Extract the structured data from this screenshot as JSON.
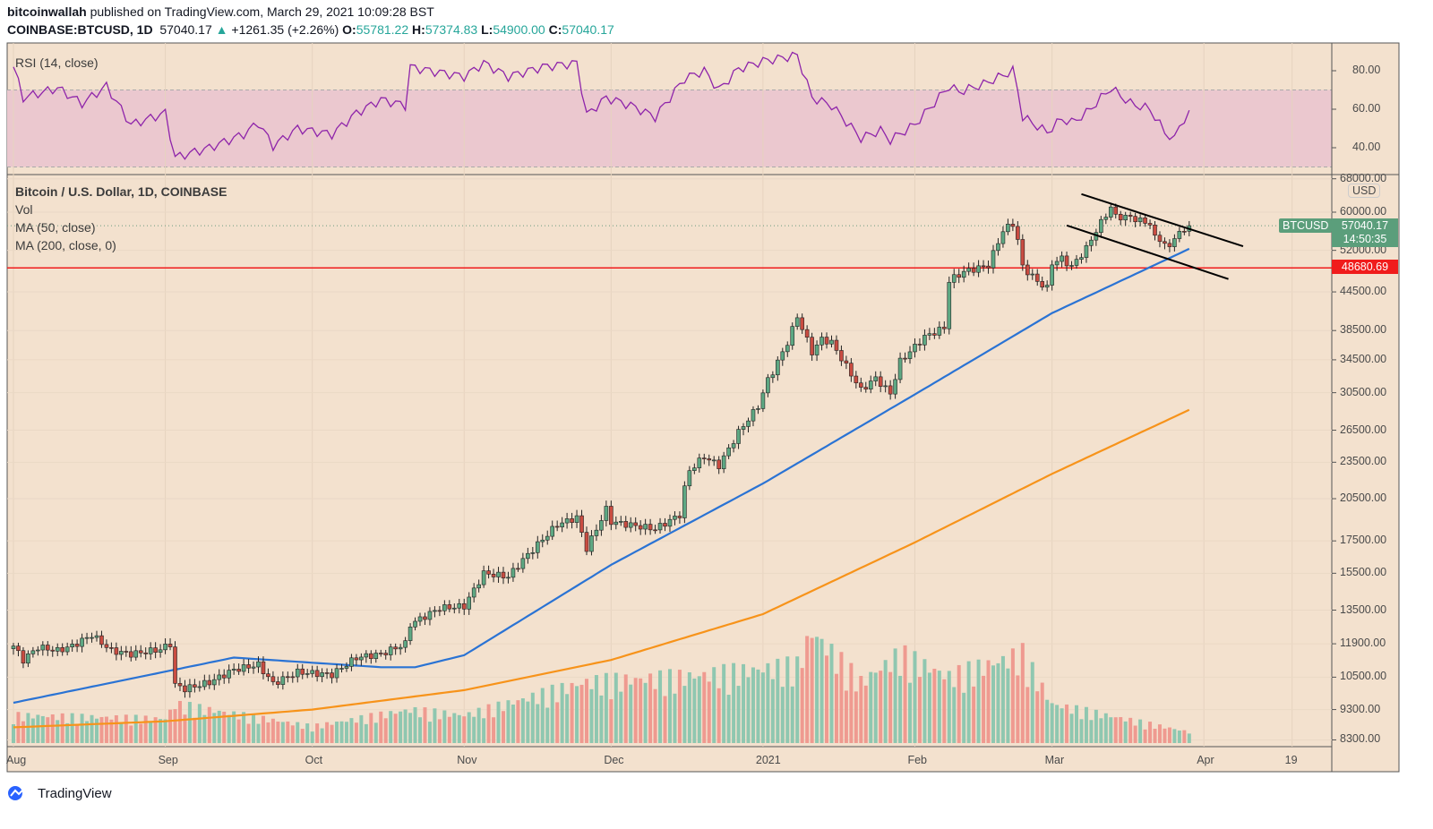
{
  "header": {
    "author": "bitcoinwallah",
    "published": "published on TradingView.com, March 29, 2021 10:09:28 BST",
    "symbol": "COINBASE:BTCUSD, 1D",
    "last": "57040.17",
    "change": "+1261.35 (+2.26%)",
    "o_label": "O:",
    "o": "55781.22",
    "h_label": "H:",
    "h": "57374.83",
    "l_label": "L:",
    "l": "54900.00",
    "c_label": "C:",
    "c": "57040.17"
  },
  "legend": {
    "rsi": "RSI (14, close)",
    "title": "Bitcoin / U.S. Dollar, 1D, COINBASE",
    "vol": "Vol",
    "ma50": "MA (50, close)",
    "ma200": "MA (200, close, 0)"
  },
  "axis": {
    "currency": "USD",
    "price_ticks": [
      "68000.00",
      "60000.00",
      "52000.00",
      "44500.00",
      "38500.00",
      "34500.00",
      "30500.00",
      "26500.00",
      "23500.00",
      "20500.00",
      "17500.00",
      "15500.00",
      "13500.00",
      "11900.00",
      "10500.00",
      "9300.00",
      "8300.00"
    ],
    "rsi_ticks": [
      "80.00",
      "60.00",
      "40.00"
    ],
    "x_ticks": [
      {
        "label": "Aug",
        "date": "2020-08-01"
      },
      {
        "label": "Sep",
        "date": "2020-09-01"
      },
      {
        "label": "Oct",
        "date": "2020-10-01"
      },
      {
        "label": "Nov",
        "date": "2020-11-01"
      },
      {
        "label": "Dec",
        "date": "2020-12-01"
      },
      {
        "label": "2021",
        "date": "2021-01-01"
      },
      {
        "label": "Feb",
        "date": "2021-02-01"
      },
      {
        "label": "Mar",
        "date": "2021-03-01"
      },
      {
        "label": "Apr",
        "date": "2021-04-01"
      },
      {
        "label": "19",
        "date": "2021-04-19"
      }
    ],
    "last_tag_label": "BTCUSD",
    "last_price": "57040.17",
    "countdown": "14:50:35",
    "level_price": "48680.69"
  },
  "colors": {
    "background": "#f3e1ce",
    "up": "#5ea883",
    "down": "#c94c41",
    "ma50": "#2a73d4",
    "ma200": "#f7931a",
    "rsi": "#8e24aa",
    "level": "#f01c1c",
    "last_tag": "#5b9e7b"
  },
  "footer": {
    "brand": "TradingView"
  },
  "chart_data": {
    "type": "candlestick",
    "scale": "log",
    "grid": true,
    "closes": [
      [
        "2020-08-01",
        11800
      ],
      [
        "2020-08-03",
        11200
      ],
      [
        "2020-08-06",
        11750
      ],
      [
        "2020-08-10",
        11600
      ],
      [
        "2020-08-13",
        11800
      ],
      [
        "2020-08-17",
        12300
      ],
      [
        "2020-08-21",
        11600
      ],
      [
        "2020-08-25",
        11450
      ],
      [
        "2020-08-31",
        11650
      ],
      [
        "2020-09-02",
        11900
      ],
      [
        "2020-09-03",
        10200
      ],
      [
        "2020-09-05",
        10050
      ],
      [
        "2020-09-10",
        10300
      ],
      [
        "2020-09-15",
        10800
      ],
      [
        "2020-09-20",
        11000
      ],
      [
        "2020-09-23",
        10250
      ],
      [
        "2020-09-28",
        10700
      ],
      [
        "2020-10-05",
        10600
      ],
      [
        "2020-10-10",
        11300
      ],
      [
        "2020-10-15",
        11450
      ],
      [
        "2020-10-20",
        11900
      ],
      [
        "2020-10-21",
        12800
      ],
      [
        "2020-10-27",
        13600
      ],
      [
        "2020-11-01",
        13700
      ],
      [
        "2020-11-05",
        15500
      ],
      [
        "2020-11-10",
        15300
      ],
      [
        "2020-11-13",
        16300
      ],
      [
        "2020-11-17",
        17600
      ],
      [
        "2020-11-20",
        18600
      ],
      [
        "2020-11-24",
        19100
      ],
      [
        "2020-11-26",
        17000
      ],
      [
        "2020-11-30",
        19700
      ],
      [
        "2020-12-01",
        18800
      ],
      [
        "2020-12-10",
        18300
      ],
      [
        "2020-12-15",
        19300
      ],
      [
        "2020-12-16",
        21300
      ],
      [
        "2020-12-17",
        22800
      ],
      [
        "2020-12-20",
        24000
      ],
      [
        "2020-12-23",
        23200
      ],
      [
        "2020-12-27",
        26300
      ],
      [
        "2020-12-31",
        29000
      ],
      [
        "2021-01-02",
        32000
      ],
      [
        "2021-01-03",
        33000
      ],
      [
        "2021-01-06",
        36800
      ],
      [
        "2021-01-08",
        40600
      ],
      [
        "2021-01-11",
        35500
      ],
      [
        "2021-01-13",
        37300
      ],
      [
        "2021-01-15",
        36800
      ],
      [
        "2021-01-21",
        30800
      ],
      [
        "2021-01-24",
        32200
      ],
      [
        "2021-01-27",
        30400
      ],
      [
        "2021-01-29",
        34300
      ],
      [
        "2021-02-03",
        37600
      ],
      [
        "2021-02-07",
        38900
      ],
      [
        "2021-02-08",
        46400
      ],
      [
        "2021-02-11",
        48000
      ],
      [
        "2021-02-14",
        48700
      ],
      [
        "2021-02-16",
        49200
      ],
      [
        "2021-02-19",
        56000
      ],
      [
        "2021-02-21",
        57500
      ],
      [
        "2021-02-22",
        54000
      ],
      [
        "2021-02-23",
        48900
      ],
      [
        "2021-02-26",
        46300
      ],
      [
        "2021-02-28",
        45100
      ],
      [
        "2021-03-01",
        49600
      ],
      [
        "2021-03-03",
        50400
      ],
      [
        "2021-03-05",
        48900
      ],
      [
        "2021-03-08",
        52400
      ],
      [
        "2021-03-10",
        56000
      ],
      [
        "2021-03-13",
        61200
      ],
      [
        "2021-03-14",
        59000
      ],
      [
        "2021-03-17",
        58900
      ],
      [
        "2021-03-19",
        58100
      ],
      [
        "2021-03-21",
        57500
      ],
      [
        "2021-03-22",
        54400
      ],
      [
        "2021-03-23",
        54300
      ],
      [
        "2021-03-25",
        52300
      ],
      [
        "2021-03-26",
        55000
      ],
      [
        "2021-03-28",
        55800
      ],
      [
        "2021-03-29",
        57040.17
      ]
    ],
    "ma50": [
      [
        "2020-08-01",
        9540
      ],
      [
        "2020-09-15",
        11300
      ],
      [
        "2020-10-15",
        10900
      ],
      [
        "2020-10-22",
        10900
      ],
      [
        "2020-11-01",
        11400
      ],
      [
        "2020-12-01",
        16000
      ],
      [
        "2021-01-01",
        21700
      ],
      [
        "2021-02-01",
        30300
      ],
      [
        "2021-03-01",
        41100
      ],
      [
        "2021-03-29",
        52300
      ]
    ],
    "ma200": [
      [
        "2020-08-01",
        8700
      ],
      [
        "2020-09-01",
        8900
      ],
      [
        "2020-10-01",
        9300
      ],
      [
        "2020-11-01",
        10000
      ],
      [
        "2020-12-01",
        11200
      ],
      [
        "2021-01-01",
        13300
      ],
      [
        "2021-02-01",
        17400
      ],
      [
        "2021-03-01",
        22500
      ],
      [
        "2021-03-29",
        28600
      ]
    ],
    "rsi": [
      [
        "2020-08-01",
        82
      ],
      [
        "2020-08-03",
        66
      ],
      [
        "2020-08-10",
        71
      ],
      [
        "2020-08-15",
        63
      ],
      [
        "2020-08-20",
        72
      ],
      [
        "2020-08-25",
        52
      ],
      [
        "2020-09-01",
        58
      ],
      [
        "2020-09-03",
        35
      ],
      [
        "2020-09-10",
        40
      ],
      [
        "2020-09-17",
        47
      ],
      [
        "2020-09-20",
        53
      ],
      [
        "2020-09-23",
        41
      ],
      [
        "2020-09-28",
        50
      ],
      [
        "2020-10-05",
        47
      ],
      [
        "2020-10-10",
        58
      ],
      [
        "2020-10-15",
        65
      ],
      [
        "2020-10-20",
        62
      ],
      [
        "2020-10-21",
        82
      ],
      [
        "2020-10-25",
        80
      ],
      [
        "2020-11-01",
        77
      ],
      [
        "2020-11-05",
        84
      ],
      [
        "2020-11-10",
        77
      ],
      [
        "2020-11-17",
        82
      ],
      [
        "2020-11-24",
        84
      ],
      [
        "2020-11-26",
        57
      ],
      [
        "2020-11-30",
        66
      ],
      [
        "2020-12-05",
        62
      ],
      [
        "2020-12-10",
        56
      ],
      [
        "2020-12-16",
        76
      ],
      [
        "2020-12-20",
        80
      ],
      [
        "2020-12-23",
        70
      ],
      [
        "2020-12-27",
        81
      ],
      [
        "2021-01-01",
        85
      ],
      [
        "2021-01-08",
        88
      ],
      [
        "2021-01-11",
        66
      ],
      [
        "2021-01-15",
        62
      ],
      [
        "2021-01-21",
        45
      ],
      [
        "2021-01-25",
        49
      ],
      [
        "2021-01-27",
        44
      ],
      [
        "2021-02-01",
        52
      ],
      [
        "2021-02-08",
        72
      ],
      [
        "2021-02-10",
        69
      ],
      [
        "2021-02-15",
        73
      ],
      [
        "2021-02-21",
        80
      ],
      [
        "2021-02-22",
        70
      ],
      [
        "2021-02-23",
        56
      ],
      [
        "2021-02-28",
        48
      ],
      [
        "2021-03-03",
        55
      ],
      [
        "2021-03-05",
        53
      ],
      [
        "2021-03-08",
        58
      ],
      [
        "2021-03-13",
        71
      ],
      [
        "2021-03-17",
        63
      ],
      [
        "2021-03-21",
        60
      ],
      [
        "2021-03-24",
        48
      ],
      [
        "2021-03-26",
        44
      ],
      [
        "2021-03-27",
        52
      ],
      [
        "2021-03-29",
        57
      ]
    ],
    "rsi_bands": [
      70,
      30
    ],
    "volume_relative": [
      [
        "2020-08-01",
        25
      ],
      [
        "2020-09-01",
        22
      ],
      [
        "2020-09-03",
        35
      ],
      [
        "2020-10-01",
        15
      ],
      [
        "2020-10-21",
        30
      ],
      [
        "2020-11-01",
        25
      ],
      [
        "2020-11-26",
        55
      ],
      [
        "2020-12-17",
        60
      ],
      [
        "2021-01-08",
        70
      ],
      [
        "2021-01-11",
        100
      ],
      [
        "2021-01-21",
        55
      ],
      [
        "2021-01-29",
        80
      ],
      [
        "2021-02-08",
        60
      ],
      [
        "2021-02-23",
        80
      ],
      [
        "2021-03-01",
        35
      ],
      [
        "2021-03-29",
        10
      ]
    ],
    "level_line": 48680.69,
    "trendlines": [
      {
        "from": [
          "2021-03-07",
          64200
        ],
        "to": [
          "2021-04-09",
          52800
        ]
      },
      {
        "from": [
          "2021-03-04",
          57100
        ],
        "to": [
          "2021-04-06",
          46700
        ]
      }
    ]
  }
}
